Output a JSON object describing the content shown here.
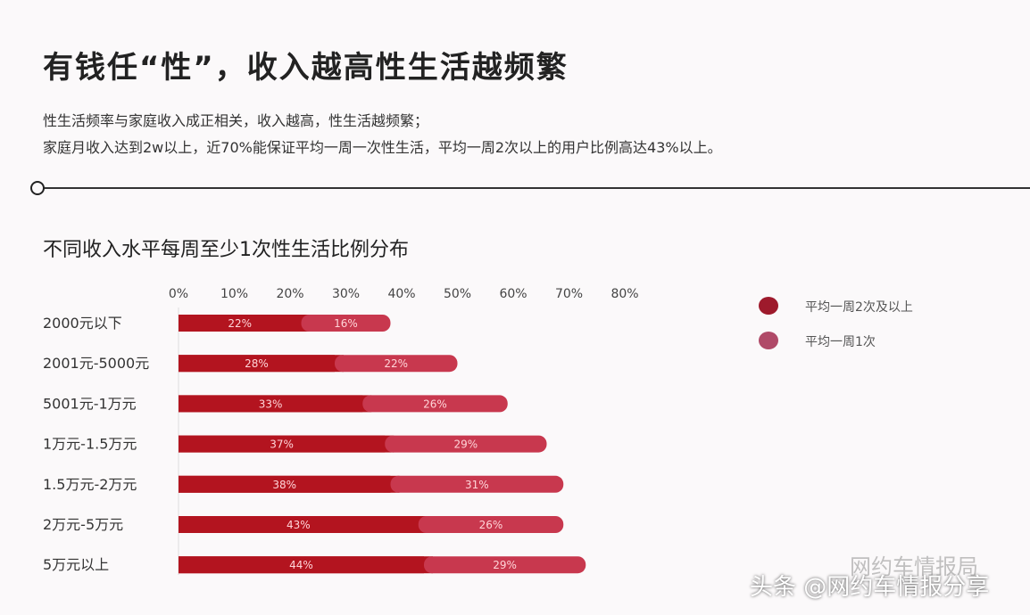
{
  "title": "有钱任“性”，收入越高性生活越频繁",
  "subtitle_lines": [
    "性生活频率与家庭收入成正相关，收入越高，性生活越频繁；",
    "家庭月收入达到2w以上，近70%能保证平均一周一次性生活，平均一周2次以上的用户比例高达43%以上。"
  ],
  "watermark": {
    "line1": "网约车情报局",
    "line2": "头条 @网约车情报分享"
  },
  "chart_data": {
    "type": "bar",
    "orientation": "horizontal",
    "stacked": true,
    "title": "不同收入水平每周至少1次性生活比例分布",
    "categories": [
      "2000元以下",
      "2001元-5000元",
      "5001元-1万元",
      "1万元-1.5万元",
      "1.5万元-2万元",
      "2万元-5万元",
      "5万元以上"
    ],
    "series": [
      {
        "name": "平均一周2次及以上",
        "color": "#b3141f",
        "values": [
          22,
          28,
          33,
          37,
          38,
          43,
          44
        ]
      },
      {
        "name": "平均一周1次",
        "color": "#c8384e",
        "values": [
          16,
          22,
          26,
          29,
          31,
          26,
          29
        ]
      }
    ],
    "xticks": [
      "0%",
      "10%",
      "20%",
      "30%",
      "40%",
      "50%",
      "60%",
      "70%",
      "80%"
    ],
    "xlim": [
      0,
      80
    ],
    "legend": "right",
    "grid": false
  }
}
